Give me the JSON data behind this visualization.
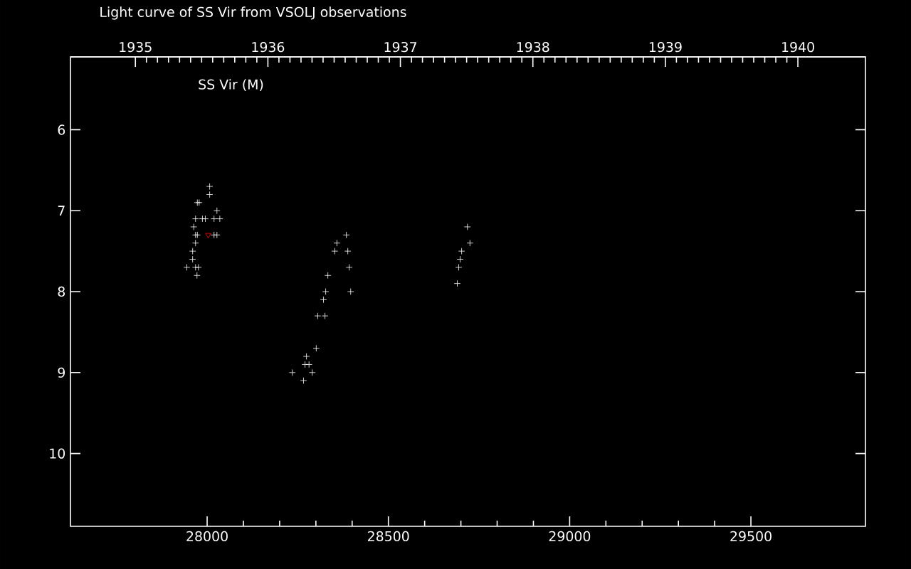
{
  "chart_data": {
    "type": "scatter",
    "title": "Light curve of SS Vir from VSOLJ observations",
    "annotations": [
      "SS Vir (M)"
    ],
    "xlim": [
      27623,
      29816
    ],
    "xticks": [
      28000,
      28500,
      29000,
      29500
    ],
    "x2lim": [
      1934.51,
      1940.51
    ],
    "x2ticks": [
      1935,
      1936,
      1937,
      1938,
      1939,
      1940
    ],
    "ylim": [
      10.9,
      5.1
    ],
    "yticks": [
      6,
      7,
      8,
      9,
      10
    ],
    "series": [
      {
        "color": "#ffffff",
        "marker": "cross",
        "x": [
          28007,
          28007,
          27973,
          27978,
          28027,
          27968,
          27987,
          27995,
          28019,
          28035,
          27963,
          27968,
          27973,
          28019,
          28027,
          27968,
          27960,
          27960,
          27944,
          27968,
          27976,
          27972,
          28384,
          28358,
          28352,
          28388,
          28392,
          28333,
          28327,
          28396,
          28321,
          28305,
          28325,
          28301,
          28274,
          28270,
          28281,
          28235,
          28290,
          28266,
          28718,
          28725,
          28702,
          28698,
          28694,
          28690
        ],
        "values": [
          6.7,
          6.8,
          6.9,
          6.9,
          7.0,
          7.1,
          7.1,
          7.1,
          7.1,
          7.1,
          7.2,
          7.3,
          7.3,
          7.3,
          7.3,
          7.4,
          7.5,
          7.6,
          7.7,
          7.7,
          7.7,
          7.8,
          7.3,
          7.4,
          7.5,
          7.5,
          7.7,
          7.8,
          8.0,
          8.0,
          8.1,
          8.3,
          8.3,
          8.7,
          8.8,
          8.9,
          8.9,
          9.0,
          9.0,
          9.1,
          7.2,
          7.4,
          7.5,
          7.6,
          7.7,
          7.9
        ]
      },
      {
        "color": "#ff0000",
        "marker": "triangle",
        "x": [
          28003
        ],
        "values": [
          7.3
        ]
      }
    ]
  }
}
